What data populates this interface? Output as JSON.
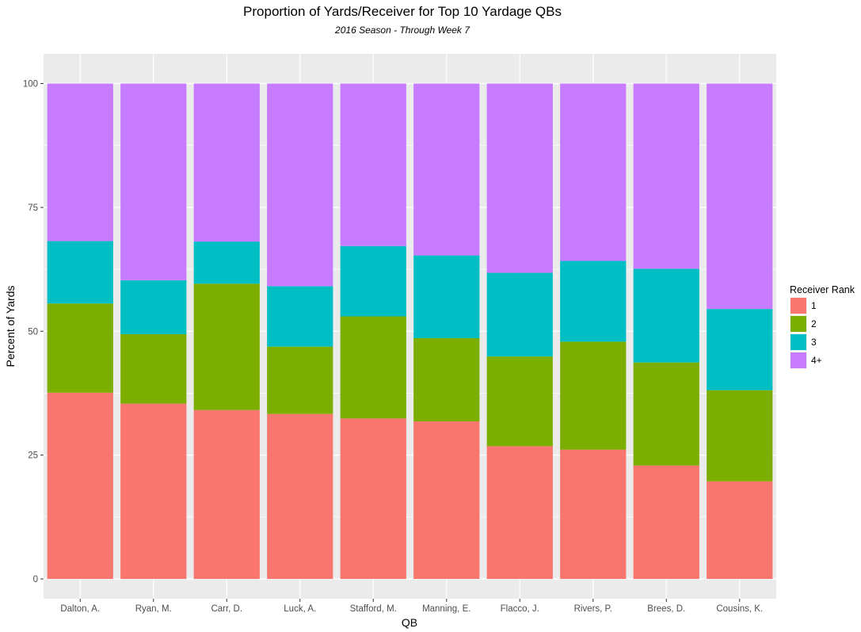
{
  "chart_data": {
    "type": "bar",
    "stacked": true,
    "title": "Proportion of Yards/Receiver for Top 10 Yardage QBs",
    "subtitle": "2016 Season - Through Week 7",
    "xlabel": "QB",
    "ylabel": "Percent of Yards",
    "ylim": [
      -4,
      106
    ],
    "yticks": [
      0,
      25,
      50,
      75,
      100
    ],
    "grid": true,
    "legend_title": "Receiver Rank",
    "legend_position": "right",
    "categories": [
      "Dalton, A.",
      "Ryan, M.",
      "Carr, D.",
      "Luck, A.",
      "Stafford, M.",
      "Manning, E.",
      "Flacco, J.",
      "Rivers, P.",
      "Brees, D.",
      "Cousins, K."
    ],
    "series": [
      {
        "name": "1",
        "color": "#F8766D",
        "values": [
          37.6,
          35.4,
          34.1,
          33.3,
          32.4,
          31.8,
          26.8,
          26.1,
          22.9,
          19.7
        ]
      },
      {
        "name": "2",
        "color": "#7CAE00",
        "values": [
          18.0,
          14.0,
          25.5,
          13.6,
          20.6,
          16.8,
          18.1,
          21.8,
          20.8,
          18.4
        ]
      },
      {
        "name": "3",
        "color": "#00BFC4",
        "values": [
          12.6,
          10.9,
          8.5,
          12.2,
          14.2,
          16.7,
          16.9,
          16.3,
          18.9,
          16.4
        ]
      },
      {
        "name": "4+",
        "color": "#C77CFF",
        "values": [
          31.8,
          39.7,
          31.9,
          40.9,
          32.8,
          34.7,
          38.2,
          35.8,
          37.4,
          45.5
        ]
      }
    ],
    "panel_background": "#EBEBEB",
    "grid_color": "#FFFFFF"
  }
}
